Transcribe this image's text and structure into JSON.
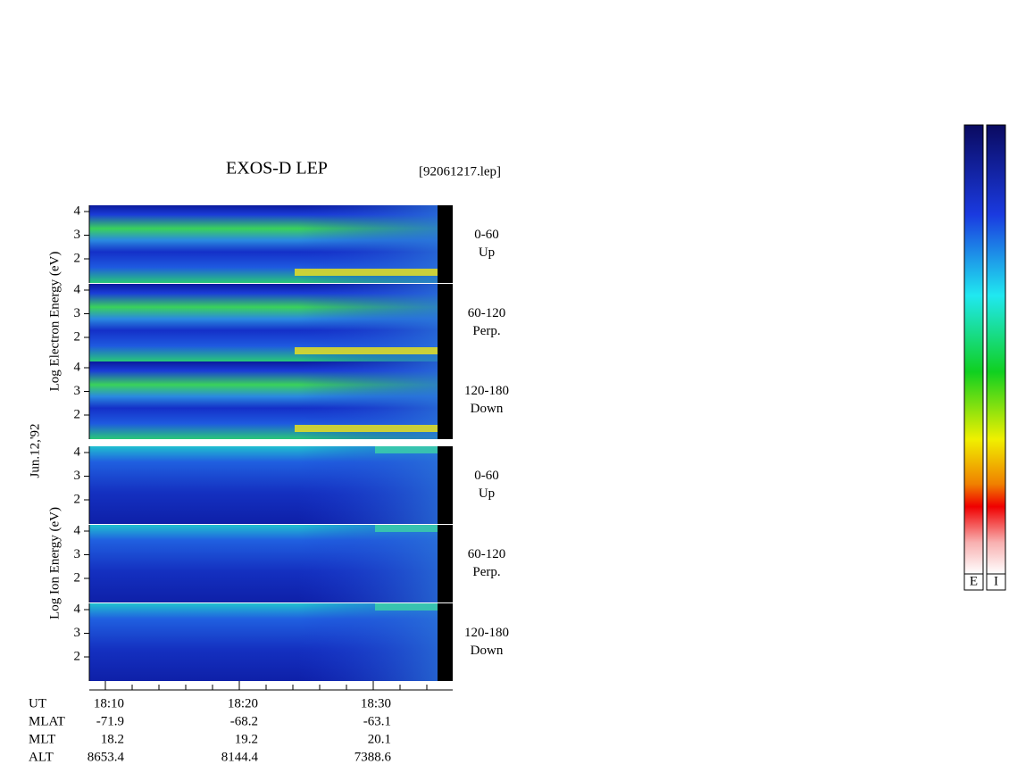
{
  "header": {
    "title": "EXOS-D LEP",
    "file": "[92061217.lep]"
  },
  "y_labels": {
    "electron": "Log Electron Energy (eV)",
    "ion": "Log Ion Energy (eV)",
    "date": "Jun.12,'92"
  },
  "panels": [
    {
      "species": "electron",
      "yticks": [
        4,
        3,
        2
      ],
      "angle": "0-60",
      "direction": "Up"
    },
    {
      "species": "electron",
      "yticks": [
        4,
        3,
        2
      ],
      "angle": "60-120",
      "direction": "Perp."
    },
    {
      "species": "electron",
      "yticks": [
        4,
        3,
        2
      ],
      "angle": "120-180",
      "direction": "Down"
    },
    {
      "species": "ion",
      "yticks": [
        4,
        3,
        2
      ],
      "angle": "0-60",
      "direction": "Up"
    },
    {
      "species": "ion",
      "yticks": [
        4,
        3,
        2
      ],
      "angle": "60-120",
      "direction": "Perp."
    },
    {
      "species": "ion",
      "yticks": [
        4,
        3,
        2
      ],
      "angle": "120-180",
      "direction": "Down"
    }
  ],
  "time_axis": {
    "rows": [
      {
        "label": "UT",
        "values": [
          "18:10",
          "18:20",
          "18:30"
        ]
      },
      {
        "label": "MLAT",
        "values": [
          "-71.9",
          "-68.2",
          "-63.1"
        ]
      },
      {
        "label": "MLT",
        "values": [
          "18.2",
          "19.2",
          "20.1"
        ]
      },
      {
        "label": "ALT",
        "values": [
          "8653.4",
          "8144.4",
          "7388.6"
        ]
      }
    ]
  },
  "colorbars": [
    "E",
    "I"
  ]
}
